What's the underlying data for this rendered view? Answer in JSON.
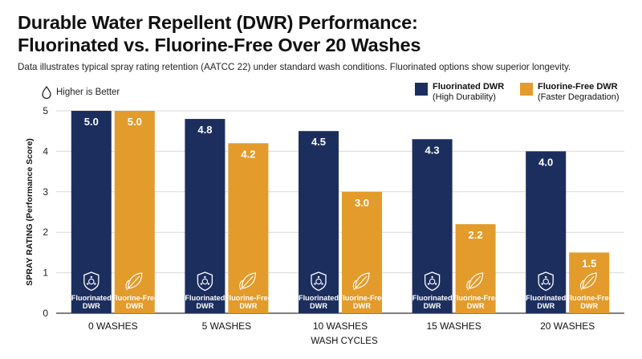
{
  "title_line1": "Durable Water Repellent (DWR) Performance:",
  "title_line2": "Fluorinated vs. Fluorine-Free Over 20 Washes",
  "subtitle": "Data illustrates typical spray rating retention (AATCC 22) under standard wash conditions. Fluorinated options show superior longevity.",
  "higher_is_better": "Higher is Better",
  "icons": {
    "droplet": "droplet-icon",
    "fluorinated": "shield-molecule-icon",
    "fluorine_free": "leaf-icon"
  },
  "legend": [
    {
      "name": "Fluorinated DWR",
      "note": "(High Durability)",
      "color": "#1c2e5e"
    },
    {
      "name": "Fluorine-Free DWR",
      "note": "(Faster Degradation)",
      "color": "#e39b2b"
    }
  ],
  "bar_labels": {
    "fluorinated": [
      "Fluorinated",
      "DWR"
    ],
    "fluorine_free": [
      "Fluorine-Free",
      "DWR"
    ]
  },
  "chart_data": {
    "type": "bar",
    "xlabel": "WASH CYCLES",
    "ylabel": "SPRAY RATING (Performance Score)",
    "ylim": [
      0,
      5
    ],
    "yticks": [
      0,
      1,
      2,
      3,
      4,
      5
    ],
    "grid": true,
    "legend_position": "top-right",
    "categories": [
      "0 WASHES",
      "5 WASHES",
      "10 WASHES",
      "15 WASHES",
      "20 WASHES"
    ],
    "series": [
      {
        "name": "Fluorinated DWR",
        "color": "#1c2e5e",
        "values": [
          5.0,
          4.8,
          4.5,
          4.3,
          4.0
        ]
      },
      {
        "name": "Fluorine-Free DWR",
        "color": "#e39b2b",
        "values": [
          5.0,
          4.2,
          3.0,
          2.2,
          1.5
        ]
      }
    ]
  }
}
